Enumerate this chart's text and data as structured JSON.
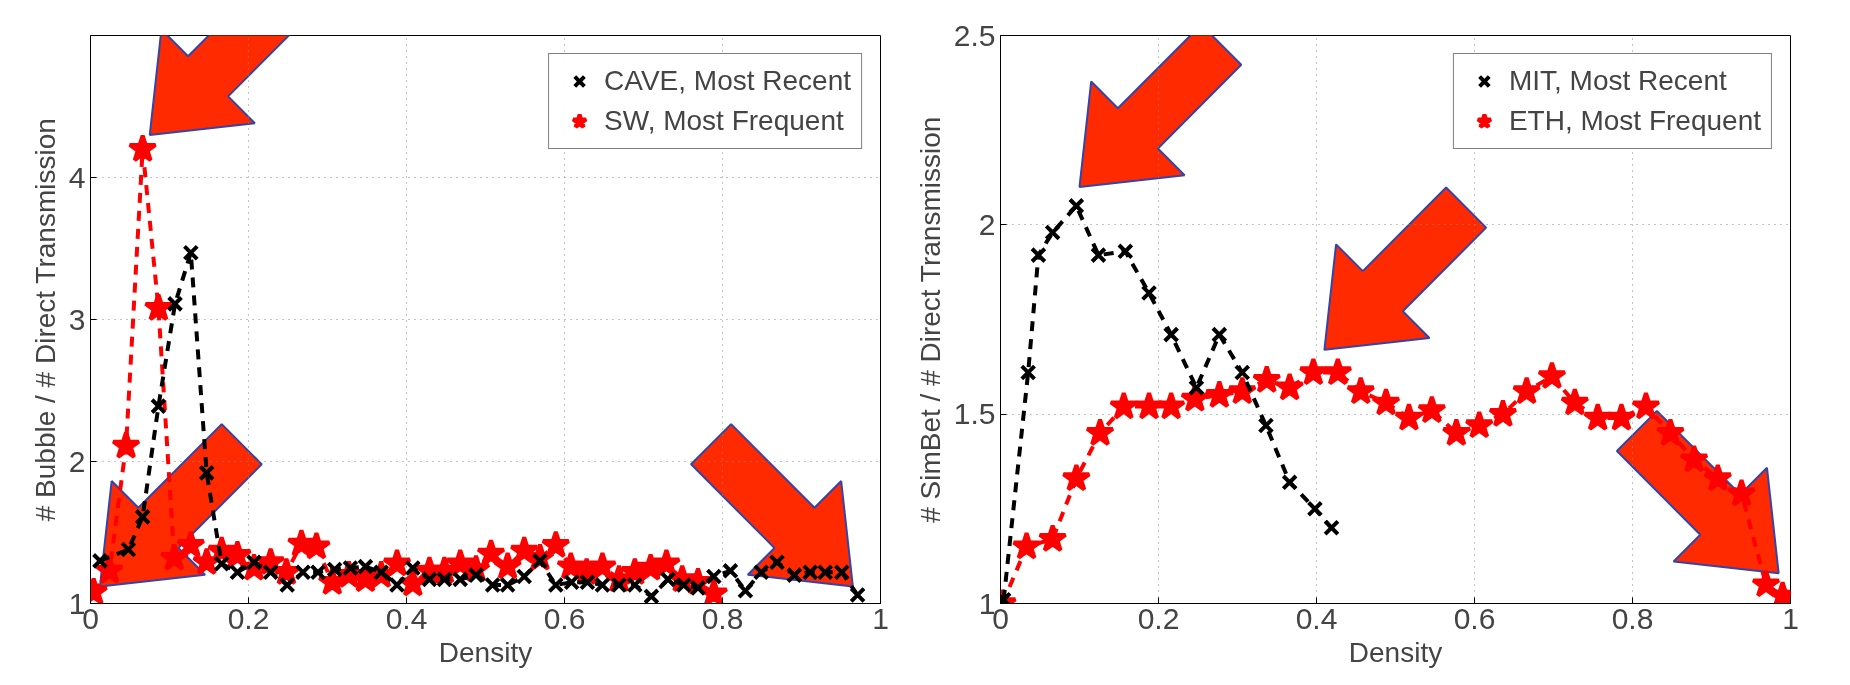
{
  "chart_data": [
    {
      "type": "line",
      "xlabel": "Density",
      "ylabel": "# Bubble / # Direct Transmission",
      "xlim": [
        0,
        1
      ],
      "ylim": [
        1,
        5
      ],
      "xticks": [
        0,
        0.2,
        0.4,
        0.6,
        0.8,
        1
      ],
      "yticks": [
        1,
        2,
        3,
        4
      ],
      "grid": true,
      "legend": "top right",
      "line_style": "dashed",
      "series": [
        {
          "name": "CAVE, Most Recent",
          "color": "#000000",
          "marker": "cross",
          "x": [
            0.012,
            0.048,
            0.066,
            0.086,
            0.107,
            0.127,
            0.147,
            0.166,
            0.186,
            0.207,
            0.228,
            0.249,
            0.269,
            0.288,
            0.309,
            0.329,
            0.348,
            0.368,
            0.388,
            0.408,
            0.429,
            0.448,
            0.468,
            0.488,
            0.509,
            0.528,
            0.549,
            0.569,
            0.589,
            0.609,
            0.629,
            0.648,
            0.669,
            0.689,
            0.71,
            0.731,
            0.751,
            0.769,
            0.789,
            0.81,
            0.829,
            0.849,
            0.869,
            0.891,
            0.911,
            0.93,
            0.951,
            0.971
          ],
          "values": [
            1.3,
            1.38,
            1.61,
            2.39,
            3.11,
            3.47,
            1.92,
            1.28,
            1.22,
            1.29,
            1.22,
            1.13,
            1.22,
            1.22,
            1.24,
            1.25,
            1.26,
            1.22,
            1.13,
            1.25,
            1.17,
            1.17,
            1.17,
            1.2,
            1.13,
            1.13,
            1.19,
            1.3,
            1.13,
            1.15,
            1.15,
            1.13,
            1.13,
            1.13,
            1.05,
            1.17,
            1.13,
            1.11,
            1.19,
            1.23,
            1.09,
            1.22,
            1.29,
            1.2,
            1.22,
            1.22,
            1.22,
            1.06
          ]
        },
        {
          "name": "SW, Most Frequent",
          "color": "#ff0000",
          "marker": "star",
          "x": [
            0.004,
            0.024,
            0.045,
            0.066,
            0.086,
            0.106,
            0.127,
            0.147,
            0.166,
            0.186,
            0.207,
            0.228,
            0.248,
            0.267,
            0.286,
            0.306,
            0.327,
            0.348,
            0.368,
            0.388,
            0.408,
            0.429,
            0.448,
            0.468,
            0.488,
            0.507,
            0.528,
            0.549,
            0.569,
            0.589,
            0.608,
            0.628,
            0.648,
            0.669,
            0.689,
            0.709,
            0.729,
            0.749,
            0.769,
            0.789
          ],
          "values": [
            1.08,
            1.23,
            2.11,
            4.2,
            3.08,
            1.32,
            1.41,
            1.29,
            1.37,
            1.34,
            1.25,
            1.29,
            1.22,
            1.42,
            1.4,
            1.15,
            1.2,
            1.17,
            1.2,
            1.28,
            1.14,
            1.23,
            1.23,
            1.28,
            1.24,
            1.35,
            1.26,
            1.37,
            1.32,
            1.41,
            1.26,
            1.22,
            1.26,
            1.17,
            1.22,
            1.25,
            1.28,
            1.17,
            1.15,
            1.07
          ]
        }
      ]
    },
    {
      "type": "line",
      "xlabel": "Density",
      "ylabel": "# SimBet / # Direct Transmission",
      "xlim": [
        0,
        1
      ],
      "ylim": [
        1,
        2.5
      ],
      "xticks": [
        0,
        0.2,
        0.4,
        0.6,
        0.8,
        1
      ],
      "yticks": [
        1,
        1.5,
        2,
        2.5
      ],
      "grid": true,
      "legend": "top right",
      "line_style": "dashed",
      "series": [
        {
          "name": "MIT, Most Recent",
          "color": "#000000",
          "marker": "cross",
          "x": [
            0.004,
            0.035,
            0.048,
            0.066,
            0.096,
            0.124,
            0.158,
            0.188,
            0.216,
            0.248,
            0.277,
            0.306,
            0.336,
            0.366,
            0.398,
            0.419
          ],
          "values": [
            1.01,
            1.61,
            1.92,
            1.98,
            2.05,
            1.92,
            1.93,
            1.82,
            1.71,
            1.57,
            1.71,
            1.61,
            1.47,
            1.32,
            1.25,
            1.2
          ]
        },
        {
          "name": "ETH, Most Frequent",
          "color": "#ff0000",
          "marker": "star",
          "x": [
            0.0025,
            0.033,
            0.066,
            0.096,
            0.126,
            0.156,
            0.188,
            0.216,
            0.246,
            0.277,
            0.306,
            0.337,
            0.366,
            0.396,
            0.427,
            0.456,
            0.488,
            0.517,
            0.546,
            0.577,
            0.606,
            0.636,
            0.666,
            0.698,
            0.727,
            0.756,
            0.786,
            0.817,
            0.848,
            0.878,
            0.908,
            0.938,
            0.969,
            0.99
          ],
          "values": [
            1.0,
            1.15,
            1.17,
            1.33,
            1.45,
            1.52,
            1.52,
            1.52,
            1.54,
            1.55,
            1.56,
            1.59,
            1.57,
            1.61,
            1.61,
            1.56,
            1.53,
            1.49,
            1.51,
            1.45,
            1.47,
            1.5,
            1.56,
            1.6,
            1.53,
            1.49,
            1.49,
            1.52,
            1.45,
            1.38,
            1.33,
            1.29,
            1.05,
            1.02
          ]
        }
      ]
    }
  ]
}
